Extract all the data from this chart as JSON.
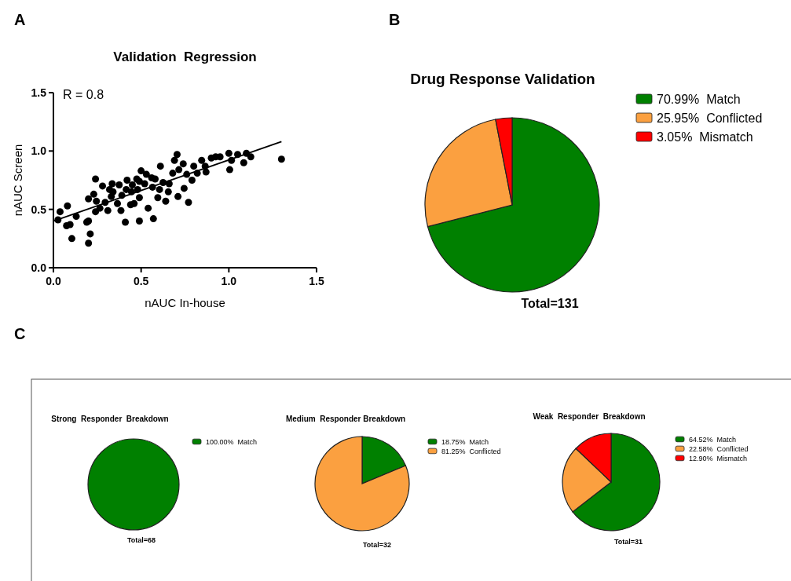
{
  "chart_data": [
    {
      "type": "scatter",
      "title": "Validation  Regression",
      "xlabel": "nAUC In-house",
      "ylabel": "nAUC Screen",
      "xlim": [
        0,
        1.5
      ],
      "ylim": [
        0,
        1.5
      ],
      "xticks": [
        {
          "value": 0,
          "label": "0.0"
        },
        0.5,
        {
          "value": 1,
          "label": "1.0"
        },
        1.5
      ],
      "yticks": [
        {
          "value": 0,
          "label": "0.0"
        },
        0.5,
        {
          "value": 1,
          "label": "1.0"
        },
        1.5
      ],
      "annotations": [
        "A",
        "R = 0.8"
      ],
      "series": [
        {
          "type": "scatter",
          "marker": "circle",
          "color": "#000000",
          "x": [
            0.026,
            0.038,
            0.08,
            0.075,
            0.095,
            0.105,
            0.13,
            0.19,
            0.2,
            0.2,
            0.21,
            0.2,
            0.24,
            0.23,
            0.245,
            0.24,
            0.265,
            0.28,
            0.295,
            0.31,
            0.32,
            0.33,
            0.335,
            0.34,
            0.365,
            0.375,
            0.39,
            0.385,
            0.415,
            0.42,
            0.41,
            0.44,
            0.445,
            0.45,
            0.46,
            0.475,
            0.48,
            0.49,
            0.49,
            0.49,
            0.5,
            0.52,
            0.53,
            0.54,
            0.56,
            0.565,
            0.57,
            0.58,
            0.595,
            0.61,
            0.605,
            0.625,
            0.64,
            0.655,
            0.66,
            0.68,
            0.69,
            0.705,
            0.71,
            0.715,
            0.74,
            0.745,
            0.76,
            0.77,
            0.79,
            0.8,
            0.82,
            0.845,
            0.865,
            0.87,
            0.9,
            0.925,
            0.95,
            1.0,
            1.005,
            1.015,
            1.05,
            1.085,
            1.1,
            1.125,
            1.3
          ],
          "values": [
            0.41,
            0.48,
            0.53,
            0.36,
            0.37,
            0.25,
            0.44,
            0.39,
            0.4,
            0.59,
            0.29,
            0.21,
            0.76,
            0.63,
            0.57,
            0.48,
            0.51,
            0.7,
            0.56,
            0.49,
            0.67,
            0.61,
            0.72,
            0.65,
            0.55,
            0.71,
            0.62,
            0.49,
            0.67,
            0.75,
            0.39,
            0.54,
            0.65,
            0.71,
            0.55,
            0.76,
            0.67,
            0.74,
            0.6,
            0.4,
            0.83,
            0.72,
            0.8,
            0.51,
            0.77,
            0.69,
            0.42,
            0.76,
            0.6,
            0.87,
            0.67,
            0.73,
            0.57,
            0.65,
            0.72,
            0.81,
            0.92,
            0.97,
            0.61,
            0.84,
            0.89,
            0.68,
            0.8,
            0.56,
            0.75,
            0.87,
            0.81,
            0.92,
            0.87,
            0.82,
            0.94,
            0.95,
            0.95,
            0.98,
            0.84,
            0.92,
            0.97,
            0.9,
            0.98,
            0.95,
            0.93
          ]
        },
        {
          "type": "line",
          "color": "#000000",
          "x": [
            0,
            1.3
          ],
          "values": [
            0.4,
            1.08
          ]
        }
      ]
    },
    {
      "type": "pie",
      "title": "Drug Response Validation",
      "categories": [
        "70.99%  Match",
        "25.95%  Conflicted",
        "3.05%  Mismatch"
      ],
      "values": [
        70.99,
        25.95,
        3.05
      ],
      "colors": [
        "#008000",
        "#fba040",
        "#ff0000"
      ],
      "legend": "right",
      "annotations": [
        "B",
        "Total=131"
      ]
    },
    {
      "type": "pie",
      "title": "Strong  Responder  Breakdown",
      "categories": [
        "100.00%  Match"
      ],
      "values": [
        100
      ],
      "colors": [
        "#008000"
      ],
      "legend": "right",
      "annotations": [
        "C",
        "Total=68"
      ]
    },
    {
      "type": "pie",
      "title": "Medium  Responder Breakdown",
      "categories": [
        "18.75%  Match",
        "81.25%  Conflicted"
      ],
      "values": [
        18.75,
        81.25
      ],
      "colors": [
        "#008000",
        "#fba040"
      ],
      "legend": "right",
      "annotations": [
        "Total=32"
      ]
    },
    {
      "type": "pie",
      "title": "Weak  Responder  Breakdown",
      "categories": [
        "64.52%  Match",
        "22.58%  Conflicted",
        "12.90%  Mismatch"
      ],
      "values": [
        64.52,
        22.58,
        12.9
      ],
      "colors": [
        "#008000",
        "#fba040",
        "#ff0000"
      ],
      "legend": "right",
      "annotations": [
        "Total=31"
      ]
    }
  ]
}
